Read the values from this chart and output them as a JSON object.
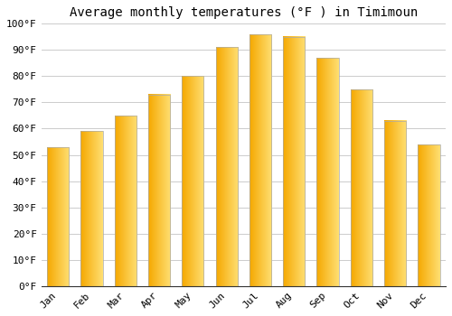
{
  "months": [
    "Jan",
    "Feb",
    "Mar",
    "Apr",
    "May",
    "Jun",
    "Jul",
    "Aug",
    "Sep",
    "Oct",
    "Nov",
    "Dec"
  ],
  "values": [
    53,
    59,
    65,
    73,
    80,
    91,
    96,
    95,
    87,
    75,
    63,
    54
  ],
  "title": "Average monthly temperatures (°F ) in Timimoun",
  "ylim": [
    0,
    100
  ],
  "yticks": [
    0,
    10,
    20,
    30,
    40,
    50,
    60,
    70,
    80,
    90,
    100
  ],
  "ytick_labels": [
    "0°F",
    "10°F",
    "20°F",
    "30°F",
    "40°F",
    "50°F",
    "60°F",
    "70°F",
    "80°F",
    "90°F",
    "100°F"
  ],
  "background_color": "#FFFFFF",
  "grid_color": "#CCCCCC",
  "title_fontsize": 10,
  "tick_fontsize": 8,
  "bar_width": 0.65,
  "bar_color_left": "#F5A800",
  "bar_color_right": "#FFD966",
  "bar_edge_color": "#AAAAAA",
  "bar_edge_width": 0.5
}
